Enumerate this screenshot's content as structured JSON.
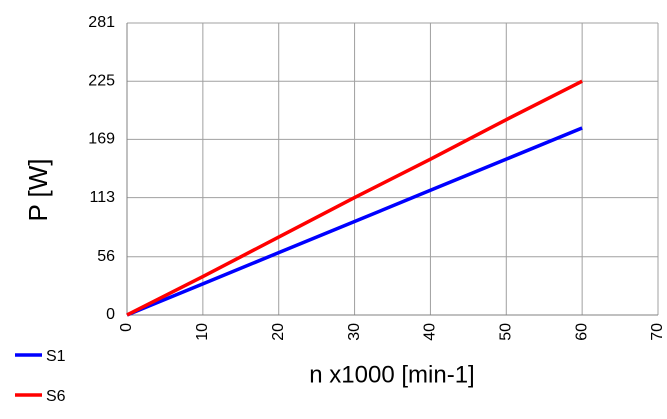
{
  "chart_data": {
    "type": "line",
    "x_label": "n x1000  [min-1]",
    "y_label": "P [W]",
    "x": [
      0,
      10,
      20,
      30,
      40,
      50,
      60
    ],
    "series": [
      {
        "name": "S1",
        "color": "#0000ff",
        "values": [
          0,
          30,
          60,
          90,
          120,
          150,
          180
        ]
      },
      {
        "name": "S6",
        "color": "#ff0000",
        "values": [
          0,
          37,
          75,
          113,
          150,
          188,
          225
        ]
      }
    ],
    "xlim": [
      0,
      70
    ],
    "xticks": [
      0,
      10,
      20,
      30,
      40,
      50,
      60,
      70
    ],
    "ylim": [
      0,
      281
    ],
    "yticks": [
      0,
      56,
      113,
      169,
      225,
      281
    ],
    "grid": true,
    "legend": "bottom-left"
  }
}
